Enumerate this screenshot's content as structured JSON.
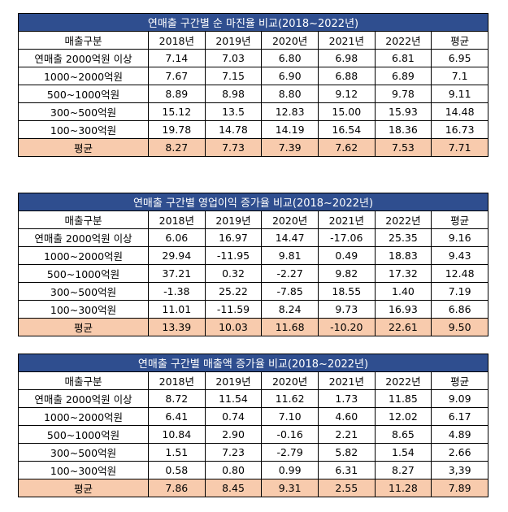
{
  "tables": [
    {
      "title": "연매출 구간별 순 마진율 비교(2018~2022년)",
      "header": [
        "매출구분",
        "2018년",
        "2019년",
        "2020년",
        "2021년",
        "2022년",
        "평균"
      ],
      "rows": [
        {
          "label": "연매출 2000억원 이상",
          "values": [
            "7.14",
            "7.03",
            "6.80",
            "6.98",
            "6.81",
            "6.95"
          ]
        },
        {
          "label": "1000~2000억원",
          "values": [
            "7.67",
            "7.15",
            "6.90",
            "6.88",
            "6.89",
            "7.1"
          ]
        },
        {
          "label": "500~1000억원",
          "values": [
            "8.89",
            "8.98",
            "8.80",
            "9.12",
            "9.78",
            "9.11"
          ]
        },
        {
          "label": "300~500억원",
          "values": [
            "15.12",
            "13.5",
            "12.83",
            "15.00",
            "15.93",
            "14.48"
          ]
        },
        {
          "label": "100~300억원",
          "values": [
            "19.78",
            "14.78",
            "14.19",
            "16.54",
            "18.36",
            "16.73"
          ]
        }
      ],
      "average": {
        "label": "평균",
        "values": [
          "8.27",
          "7.73",
          "7.39",
          "7.62",
          "7.53",
          "7.71"
        ]
      }
    },
    {
      "title": "연매출 구간별 영업이익 증가율 비교(2018~2022년)",
      "header": [
        "매출구분",
        "2018년",
        "2019년",
        "2020년",
        "2021년",
        "2022년",
        "평균"
      ],
      "rows": [
        {
          "label": "연매출 2000억원 이상",
          "values": [
            "6.06",
            "16.97",
            "14.47",
            "-17.06",
            "25.35",
            "9.16"
          ]
        },
        {
          "label": "1000~2000억원",
          "values": [
            "29.94",
            "-11.95",
            "9.81",
            "0.49",
            "18.83",
            "9.43"
          ]
        },
        {
          "label": "500~1000억원",
          "values": [
            "37.21",
            "0.32",
            "-2.27",
            "9.82",
            "17.32",
            "12.48"
          ]
        },
        {
          "label": "300~500억원",
          "values": [
            "-1.38",
            "25.22",
            "-7.85",
            "18.55",
            "1.40",
            "7.19"
          ]
        },
        {
          "label": "100~300억원",
          "values": [
            "11.01",
            "-11.59",
            "8.24",
            "9.73",
            "16.93",
            "6.86"
          ]
        }
      ],
      "average": {
        "label": "평균",
        "values": [
          "13.39",
          "10.03",
          "11.68",
          "-10.20",
          "22.61",
          "9.50"
        ]
      }
    },
    {
      "title": "연매출 구간별 매출액 증가율 비교(2018~2022년)",
      "header": [
        "매출구분",
        "2018년",
        "2019년",
        "2020년",
        "2021년",
        "2022년",
        "평균"
      ],
      "rows": [
        {
          "label": "연매출 2000억원 이상",
          "values": [
            "8.72",
            "11.54",
            "11.62",
            "1.73",
            "11.85",
            "9.09"
          ]
        },
        {
          "label": "1000~2000억원",
          "values": [
            "6.41",
            "0.74",
            "7.10",
            "4.60",
            "12.02",
            "6.17"
          ]
        },
        {
          "label": "500~1000억원",
          "values": [
            "10.84",
            "2.90",
            "-0.16",
            "2.21",
            "8.65",
            "4.89"
          ]
        },
        {
          "label": "300~500억원",
          "values": [
            "1.51",
            "7.23",
            "-2.79",
            "5.82",
            "1.54",
            "2.66"
          ]
        },
        {
          "label": "100~300억원",
          "values": [
            "0.58",
            "0.80",
            "0.99",
            "6.31",
            "8.27",
            "3,39"
          ]
        }
      ],
      "average": {
        "label": "평균",
        "values": [
          "7.86",
          "8.45",
          "9.31",
          "2.55",
          "11.28",
          "7.89"
        ]
      }
    }
  ]
}
